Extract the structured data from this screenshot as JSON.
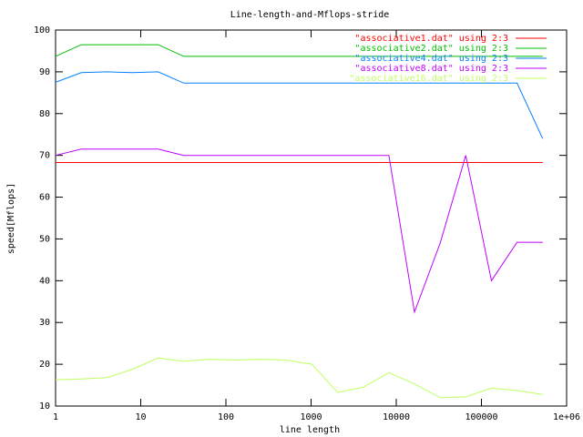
{
  "chart_data": {
    "type": "line",
    "title": "Line-length-and-Mflops-stride",
    "x_label": "line length",
    "y_label": "speed[Mflops]",
    "xscale": "log",
    "legend": "top right",
    "grid": false,
    "x": [
      1,
      2,
      4,
      8,
      16,
      32,
      64,
      128,
      256,
      512,
      1024,
      2048,
      4096,
      8192,
      16384,
      32768,
      65536,
      131072,
      262144,
      524288
    ],
    "xlim": [
      1,
      1000000
    ],
    "xticks": [
      1,
      10,
      100,
      1000,
      10000,
      100000,
      {
        "value": 1000000,
        "label": "1e+06"
      }
    ],
    "ylim": [
      10,
      100
    ],
    "yticks": [
      10,
      20,
      30,
      40,
      50,
      60,
      70,
      80,
      90,
      100
    ],
    "series": [
      {
        "name": "\"associative1.dat\" using 2:3",
        "color": "#ff0000",
        "values": [
          68.3,
          68.3,
          68.3,
          68.3,
          68.3,
          68.3,
          68.3,
          68.3,
          68.3,
          68.3,
          68.3,
          68.3,
          68.3,
          68.3,
          68.3,
          68.3,
          68.3,
          68.3,
          68.3,
          68.3
        ]
      },
      {
        "name": "\"associative2.dat\" using 2:3",
        "color": "#00c000",
        "values": [
          93.7,
          96.5,
          96.5,
          96.5,
          96.5,
          93.7,
          93.7,
          93.7,
          93.7,
          93.7,
          93.7,
          93.7,
          93.7,
          93.7,
          93.7,
          93.7,
          93.7,
          93.7,
          93.7,
          93.7
        ]
      },
      {
        "name": "\"associative4.dat\" using 2:3",
        "color": "#0080ff",
        "values": [
          87.5,
          89.8,
          90,
          89.8,
          90,
          87.3,
          87.3,
          87.3,
          87.3,
          87.3,
          87.3,
          87.3,
          87.3,
          87.3,
          87.3,
          87.3,
          87.3,
          87.3,
          87.3,
          74
        ]
      },
      {
        "name": "\"associative8.dat\" using 2:3",
        "color": "#c000ff",
        "values": [
          70,
          71.5,
          71.5,
          71.5,
          71.5,
          70,
          70,
          70,
          70,
          70,
          70,
          70,
          70,
          70,
          32.5,
          49,
          70,
          40,
          49.2,
          49.2
        ]
      },
      {
        "name": "\"associative16.dat\" using 2:3",
        "color": "#c0ff60",
        "values": [
          16.3,
          16.5,
          16.8,
          18.8,
          21.5,
          20.7,
          21.2,
          21,
          21.2,
          21,
          20,
          13.3,
          14.5,
          18,
          15.3,
          12,
          12.2,
          14.3,
          13.7,
          12.8
        ]
      }
    ]
  }
}
